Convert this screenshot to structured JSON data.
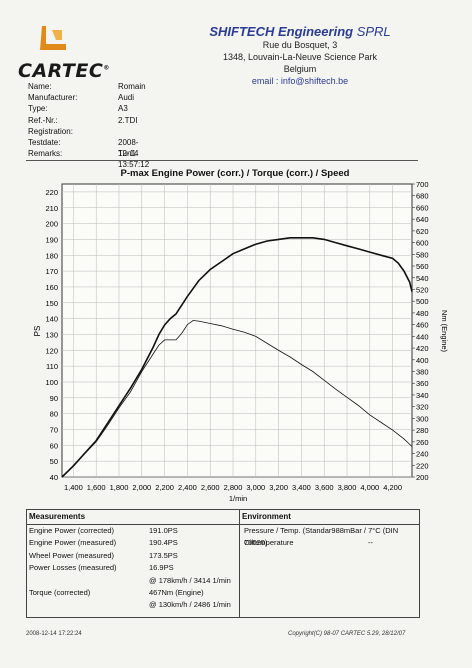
{
  "brand": {
    "logo_text": "CARTEC",
    "reg_mark": "®"
  },
  "company": {
    "name_bold": "SHIFTECH Engineering",
    "name_rest": " SPRL",
    "address1": "Rue du Bosquet, 3",
    "address2": "1348, Louvain-La-Neuve Science Park",
    "country": "Belgium",
    "email": "email : info@shiftech.be"
  },
  "vehicle": [
    {
      "label": "Name:",
      "value": "Romain"
    },
    {
      "label": "Manufacturer:",
      "value": "Audi"
    },
    {
      "label": "Type:",
      "value": "A3"
    },
    {
      "label": "Ref.-Nr.:",
      "value": "2.TDI"
    },
    {
      "label": "Registration:",
      "value": ""
    },
    {
      "label": "Testdate:",
      "value": "2008-12-14 13:57:12"
    },
    {
      "label": "Remarks:",
      "value": "Tun1"
    }
  ],
  "chart_data": {
    "type": "line",
    "title": "P-max Engine Power (corr.) / Torque (corr.) / Speed",
    "xlabel": "1/min",
    "ylabel_left": "PS",
    "ylabel_right": "Nm (Engine)",
    "xlim": [
      1300,
      4370
    ],
    "ylim_left": [
      40,
      225
    ],
    "ylim_right": [
      200,
      700
    ],
    "x_ticks": [
      1400,
      1600,
      1800,
      2000,
      2200,
      2400,
      2600,
      2800,
      3000,
      3200,
      3400,
      3600,
      3800,
      4000,
      4200
    ],
    "x_tick_labels": [
      "1,400",
      "1,600",
      "1,800",
      "2,000",
      "2,200",
      "2,400",
      "2,600",
      "2,800",
      "3,000",
      "3,200",
      "3,400",
      "3,600",
      "3,800",
      "4,000",
      "4,200"
    ],
    "y_left_ticks": [
      40,
      50,
      60,
      70,
      80,
      90,
      100,
      110,
      120,
      130,
      140,
      150,
      160,
      170,
      180,
      190,
      200,
      210,
      220
    ],
    "y_right_ticks": [
      200,
      220,
      240,
      260,
      280,
      300,
      320,
      340,
      360,
      380,
      400,
      420,
      440,
      460,
      480,
      500,
      520,
      540,
      560,
      580,
      600,
      620,
      640,
      660,
      680,
      700
    ],
    "grid": true,
    "series": [
      {
        "name": "Engine Power (corr.)",
        "axis": "left",
        "color": "#111111",
        "x": [
          1300,
          1400,
          1500,
          1600,
          1700,
          1800,
          1900,
          2000,
          2100,
          2150,
          2200,
          2250,
          2300,
          2400,
          2500,
          2600,
          2700,
          2800,
          2900,
          3000,
          3100,
          3200,
          3300,
          3400,
          3500,
          3600,
          3700,
          3800,
          3900,
          4000,
          4100,
          4200,
          4250,
          4300,
          4350,
          4370
        ],
        "y": [
          40,
          47,
          55,
          63,
          74,
          85,
          96,
          108,
          122,
          130,
          136,
          140,
          143,
          154,
          164,
          171,
          176,
          181,
          184,
          187,
          189,
          190,
          191,
          191,
          191,
          190,
          188,
          186,
          184,
          182,
          180,
          178,
          175,
          170,
          163,
          157
        ]
      },
      {
        "name": "Torque (corr.)",
        "axis": "right",
        "color": "#111111",
        "x": [
          1300,
          1400,
          1500,
          1600,
          1700,
          1800,
          1900,
          2000,
          2100,
          2150,
          2200,
          2250,
          2300,
          2350,
          2400,
          2450,
          2500,
          2600,
          2700,
          2800,
          2900,
          3000,
          3100,
          3200,
          3300,
          3400,
          3500,
          3600,
          3700,
          3800,
          3900,
          4000,
          4100,
          4200,
          4300,
          4370
        ],
        "y": [
          200,
          220,
          240,
          260,
          288,
          318,
          345,
          380,
          410,
          425,
          434,
          434,
          434,
          445,
          460,
          467,
          466,
          462,
          458,
          452,
          447,
          440,
          428,
          416,
          405,
          392,
          380,
          365,
          350,
          336,
          322,
          306,
          293,
          280,
          265,
          252
        ]
      }
    ]
  },
  "measurements": {
    "header": "Measurements",
    "rows": [
      {
        "label": "Engine Power (corrected)",
        "value": "191.0PS"
      },
      {
        "label": "Engine Power (measured)",
        "value": "190.4PS"
      },
      {
        "label": "Wheel Power (measured)",
        "value": "173.5PS"
      },
      {
        "label": "Power Losses (measured)",
        "value": "16.9PS"
      },
      {
        "label": "",
        "value": "@ 178km/h / 3414 1/min"
      },
      {
        "label": "Torque (corrected)",
        "value": "467Nm (Engine)"
      },
      {
        "label": "",
        "value": "@ 130km/h / 2486 1/min"
      }
    ]
  },
  "environment": {
    "header": "Environment",
    "rows": [
      {
        "label": "Pressure / Temp. (Standar988mBar / 7°C   (DIN 70020)",
        "value": ""
      },
      {
        "label": "Oiltemperature",
        "value": "--"
      }
    ]
  },
  "footer": {
    "left": "2008-12-14 17:22:24",
    "right": "Copyright(C) 98-07 CARTEC 5.29, 28/12/07"
  }
}
